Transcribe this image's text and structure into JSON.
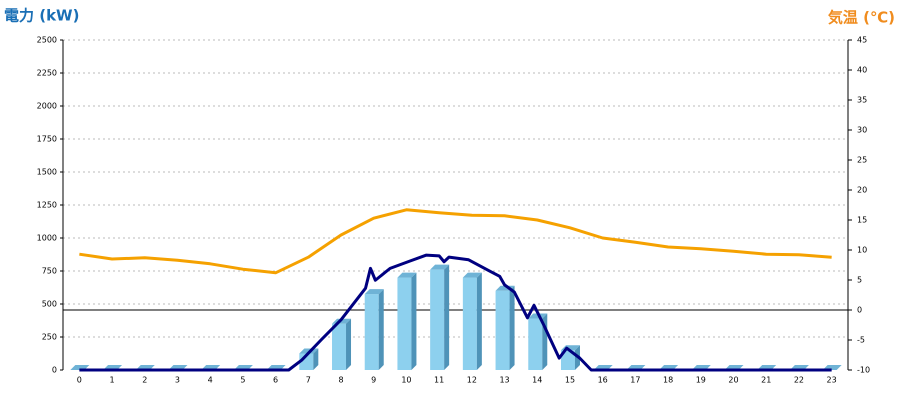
{
  "chart_data": {
    "type": "bar-line",
    "y_title": "電力 (kW)",
    "y2_title": "気温 (℃)",
    "categories": [
      "0",
      "1",
      "2",
      "3",
      "4",
      "5",
      "6",
      "7",
      "8",
      "9",
      "10",
      "11",
      "12",
      "13",
      "14",
      "15",
      "16",
      "17",
      "18",
      "19",
      "20",
      "21",
      "22",
      "23"
    ],
    "ylim": [
      0,
      2500
    ],
    "yticks": [
      0,
      250,
      500,
      750,
      1000,
      1250,
      1500,
      1750,
      2000,
      2250,
      2500
    ],
    "y2lim": [
      -10,
      45
    ],
    "y2ticks": [
      -10,
      -5,
      0,
      5,
      10,
      15,
      20,
      25,
      30,
      35,
      40,
      45
    ],
    "grid": true,
    "series": [
      {
        "type": "bar",
        "color": "#8dd0ee",
        "values": [
          0,
          0,
          0,
          0,
          0,
          0,
          0,
          125,
          350,
          575,
          700,
          760,
          700,
          600,
          390,
          150,
          0,
          0,
          0,
          0,
          0,
          0,
          0,
          0
        ]
      },
      {
        "type": "line",
        "color": "#000080",
        "x": [
          0,
          6.4,
          6.8,
          7.4,
          8.0,
          8.75,
          8.9,
          9.05,
          9.5,
          10.1,
          10.6,
          11.0,
          11.15,
          11.3,
          11.9,
          12.5,
          12.85,
          13.0,
          13.3,
          13.7,
          13.9,
          14.2,
          14.67,
          14.9,
          15.3,
          15.65,
          23
        ],
        "values": [
          0,
          0,
          75,
          230,
          380,
          620,
          770,
          680,
          770,
          825,
          870,
          865,
          820,
          855,
          835,
          755,
          710,
          645,
          590,
          395,
          490,
          340,
          90,
          165,
          90,
          0,
          0
        ]
      },
      {
        "type": "line",
        "axis": "y2",
        "color": "#f5a100",
        "values": [
          9.3,
          8.5,
          8.7,
          8.3,
          7.7,
          6.8,
          6.2,
          8.8,
          12.5,
          15.3,
          16.7,
          16.2,
          15.8,
          15.7,
          15,
          13.7,
          12,
          11.3,
          10.5,
          10.2,
          9.8,
          9.3,
          9.2,
          8.8
        ]
      }
    ]
  }
}
